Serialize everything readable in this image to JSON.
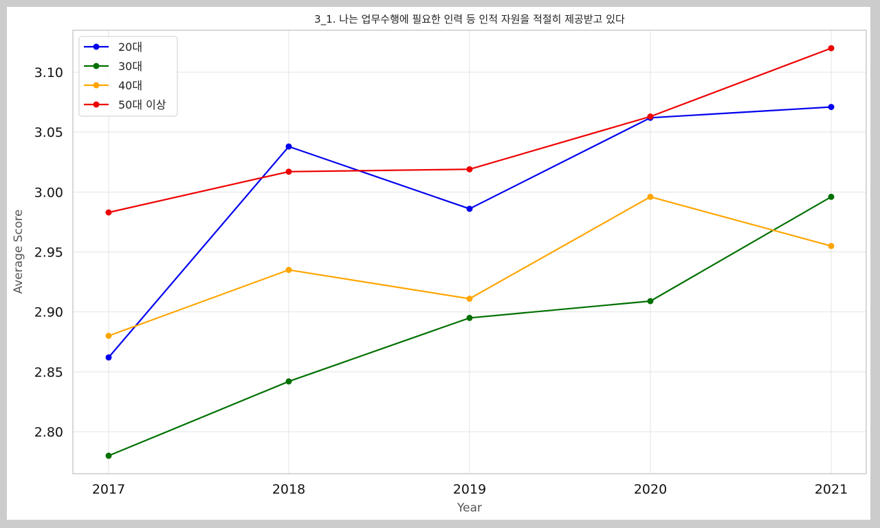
{
  "chart_data": {
    "type": "line",
    "title": "3_1. 나는 업무수행에 필요한 인력 등 인적 자원을 적절히 제공받고 있다",
    "xlabel": "Year",
    "ylabel": "Average Score",
    "categories": [
      "2017",
      "2018",
      "2019",
      "2020",
      "2021"
    ],
    "ylim": [
      2.765,
      3.135
    ],
    "yticks": [
      "2.80",
      "2.85",
      "2.90",
      "2.95",
      "3.00",
      "3.05",
      "3.10"
    ],
    "grid": true,
    "legend_position": "top-left",
    "series": [
      {
        "name": "20대",
        "color": "#0000ee",
        "values": [
          2.862,
          3.038,
          2.986,
          3.062,
          3.071
        ]
      },
      {
        "name": "30대",
        "color": "#007000",
        "values": [
          2.78,
          2.842,
          2.895,
          2.909,
          2.996
        ]
      },
      {
        "name": "40대",
        "color": "#ffa500",
        "values": [
          2.88,
          2.935,
          2.911,
          2.996,
          2.955
        ]
      },
      {
        "name": "50대 이상",
        "color": "#ee0000",
        "values": [
          2.983,
          3.017,
          3.019,
          3.063,
          3.12
        ]
      }
    ]
  }
}
